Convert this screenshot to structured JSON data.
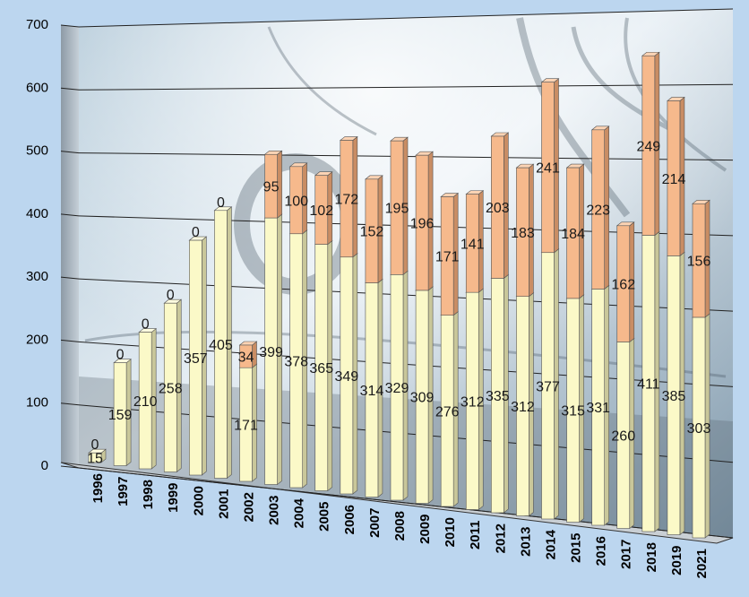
{
  "chart_data": {
    "type": "bar",
    "stacked": true,
    "three_d": true,
    "categories": [
      "1996",
      "1997",
      "1998",
      "1999",
      "2000",
      "2001",
      "2002",
      "2003",
      "2004",
      "2005",
      "2006",
      "2007",
      "2008",
      "2009",
      "2010",
      "2011",
      "2012",
      "2013",
      "2014",
      "2015",
      "2016",
      "2017",
      "2018",
      "2019",
      "2021"
    ],
    "series": [
      {
        "values": [
          15,
          159,
          210,
          258,
          357,
          405,
          171,
          399,
          378,
          365,
          349,
          314,
          329,
          309,
          276,
          312,
          335,
          312,
          377,
          315,
          331,
          260,
          411,
          385,
          303
        ],
        "color": "#fbf9c8"
      },
      {
        "values": [
          0,
          0,
          0,
          0,
          0,
          0,
          34,
          95,
          100,
          102,
          172,
          152,
          195,
          196,
          171,
          141,
          203,
          183,
          241,
          184,
          223,
          162,
          249,
          214,
          156
        ],
        "color": "#f6b98c"
      }
    ],
    "first_labels": [
      "15",
      "159",
      "210",
      "258",
      "357",
      "405",
      "171",
      "399",
      "378",
      "365",
      "349",
      "314",
      "329",
      "309",
      "276",
      "312",
      "335",
      "312",
      "377",
      "315",
      "331",
      "260",
      "411",
      "385",
      "303"
    ],
    "second_labels": [
      "0",
      "0",
      "0",
      "0",
      "0",
      "0",
      "34",
      "95",
      "100",
      "102",
      "172",
      "152",
      "195",
      "196",
      "171",
      "141",
      "203",
      "183",
      "241",
      "184",
      "223",
      "162",
      "249",
      "214",
      "156"
    ],
    "ylim": [
      0,
      700
    ],
    "yticks": [
      "0",
      "100",
      "200",
      "300",
      "400",
      "500",
      "600",
      "700"
    ],
    "grid": true,
    "legend": "none"
  }
}
